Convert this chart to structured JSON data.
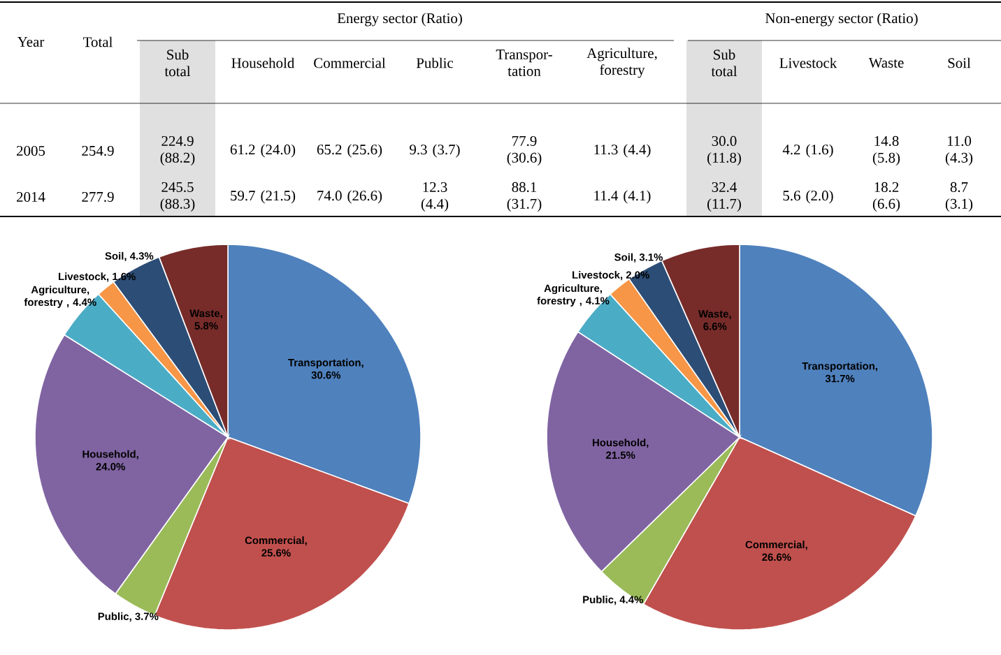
{
  "chart_data": [
    {
      "type": "other",
      "categories": [
        "Year",
        "Total",
        "Sub total",
        "Household",
        "Commercial",
        "Public",
        "Transpor-tation",
        "Agriculture, forestry",
        "Sub total",
        "Livestock",
        "Waste",
        "Soil"
      ],
      "cell_labels": [
        [
          "2005",
          "254.9",
          "224.9 (88.2)",
          "61.2 (24.0)",
          "65.2 (25.6)",
          "9.3 (3.7)",
          "77.9 (30.6)",
          "11.3 (4.4)",
          "30.0 (11.8)",
          "4.2 (1.6)",
          "14.8 (5.8)",
          "11.0 (4.3)"
        ],
        [
          "2014",
          "277.9",
          "245.5 (88.3)",
          "59.7 (21.5)",
          "74.0 (26.6)",
          "12.3 (4.4)",
          "88.1 (31.7)",
          "11.4 (4.1)",
          "32.4 (11.7)",
          "5.6 (2.0)",
          "18.2 (6.6)",
          "8.7 (3.1)"
        ]
      ],
      "annotations": [
        "Energy sector (Ratio)",
        "Non-energy sector (Ratio)"
      ]
    },
    {
      "type": "pie",
      "categories": [
        "Transportation",
        "Commercial",
        "Public",
        "Household",
        "Agriculture, forestry ",
        "Livestock",
        "Soil",
        "Waste"
      ],
      "values": [
        30.6,
        25.6,
        3.7,
        24.0,
        4.4,
        1.6,
        4.3,
        5.8
      ],
      "value_labels": [
        ", 30.6%",
        ", 25.6%",
        ", 3.7%",
        ", 24.0%",
        ", 4.4%",
        ", 1.6%",
        ", 4.3%",
        ", 5.8%"
      ],
      "colors": [
        "#4f81bd",
        "#c0504d",
        "#9bbb59",
        "#8064a2",
        "#4bacc6",
        "#f79646",
        "#2c4d75",
        "#772c2a"
      ]
    },
    {
      "type": "pie",
      "categories": [
        "Transportation",
        "Commercial",
        "Public",
        "Household",
        "Agriculture, forestry ",
        "Livestock",
        "Soil",
        "Waste"
      ],
      "values": [
        31.7,
        26.6,
        4.4,
        21.5,
        4.1,
        2.0,
        3.1,
        6.6
      ],
      "value_labels": [
        ", 31.7%",
        ", 26.6%",
        ", 4.4%",
        ", 21.5%",
        ", 4.1%",
        ", 2.0%",
        ", 3.1%",
        ", 6.6%"
      ],
      "colors": [
        "#4f81bd",
        "#c0504d",
        "#9bbb59",
        "#8064a2",
        "#4bacc6",
        "#f79646",
        "#2c4d75",
        "#772c2a"
      ]
    }
  ]
}
